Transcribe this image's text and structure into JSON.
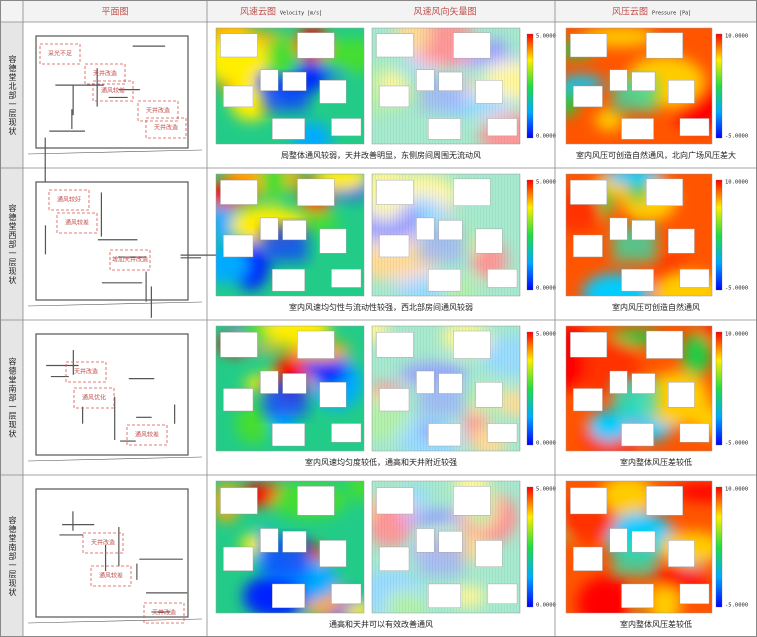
{
  "header": {
    "plan": "平面图",
    "velocity": "风速云图",
    "velocity_unit": "Velocity [m/s]",
    "vector": "风速风向矢量图",
    "pressure": "风压云图",
    "pressure_unit": "Pressure [Pa]"
  },
  "rows": [
    {
      "label": "容德堂北部一层现状",
      "annotations": [
        "采光不足",
        "通风较差",
        "天井改造",
        "天井改造",
        "天井改造"
      ],
      "velocity_scale": [
        "5.0000",
        "0.0000"
      ],
      "pressure_scale": [
        "10.0000",
        "-5.0000"
      ],
      "velocity_caption": "局整体通风较弱，天井改善明显，东侧房间周围无流动风",
      "pressure_caption": "室内风压可创造自然通风，北向广场风压差大"
    },
    {
      "label": "容德堂西部一层现状",
      "annotations": [
        "通风较差",
        "增加天井改造",
        "通风较好"
      ],
      "velocity_scale": [
        "5.0000",
        "0.0000"
      ],
      "pressure_scale": [
        "10.0000",
        "-5.0000"
      ],
      "velocity_caption": "室内风速均匀性与流动性较强，西北部房间通风较弱",
      "pressure_caption": "室内风压可创造自然通风"
    },
    {
      "label": "容德堂南部一层现状",
      "annotations": [
        "通风优化",
        "通风较差",
        "天井改造"
      ],
      "velocity_scale": [
        "5.0000",
        "0.0000"
      ],
      "pressure_scale": [
        "10.0000",
        "-5.0000"
      ],
      "velocity_caption": "室内风速均匀度较低，通高和天井附近较强",
      "pressure_caption": "室内整体风压差较低"
    },
    {
      "label": "容德堂南部一层现状",
      "annotations": [
        "通风较差",
        "天井改造",
        "天井改造"
      ],
      "velocity_scale": [
        "5.0000",
        "0.0000"
      ],
      "pressure_scale": [
        "10.0000",
        "-5.0000"
      ],
      "velocity_caption": "通高和天井可以有效改善通风",
      "pressure_caption": "室内整体风压差较低"
    }
  ]
}
